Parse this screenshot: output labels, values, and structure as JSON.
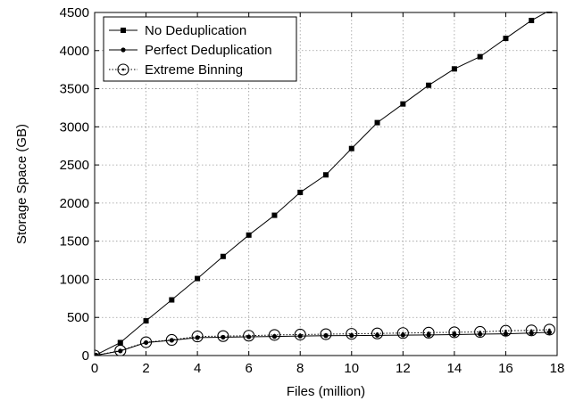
{
  "chart_data": {
    "type": "line",
    "title": "",
    "xlabel": "Files (million)",
    "ylabel": "Storage Space (GB)",
    "xlim": [
      0,
      18
    ],
    "ylim": [
      0,
      4500
    ],
    "xticks": [
      0,
      2,
      4,
      6,
      8,
      10,
      12,
      14,
      16,
      18
    ],
    "xtick_labels": [
      "0",
      "2",
      "4",
      "6",
      "8",
      "10",
      "12",
      "14",
      "16",
      "18"
    ],
    "yticks": [
      0,
      500,
      1000,
      1500,
      2000,
      2500,
      3000,
      3500,
      4000,
      4500
    ],
    "ytick_labels": [
      "0",
      "500",
      "1000",
      "1500",
      "2000",
      "2500",
      "3000",
      "3500",
      "4000",
      "4500"
    ],
    "grid": true,
    "legend_position": "top-left",
    "series": [
      {
        "name": "No Deduplication",
        "marker": "square",
        "line_style": "solid",
        "color": "#000000",
        "x": [
          0,
          1,
          2,
          3,
          4,
          5,
          6,
          7,
          8,
          9,
          10,
          11,
          12,
          13,
          14,
          15,
          16,
          17,
          17.7
        ],
        "y": [
          0,
          170,
          455,
          730,
          1010,
          1300,
          1580,
          1840,
          2140,
          2370,
          2715,
          3055,
          3300,
          3545,
          3760,
          3920,
          4160,
          4395,
          4525
        ]
      },
      {
        "name": "Perfect Deduplication",
        "marker": "dot",
        "line_style": "solid",
        "color": "#000000",
        "x": [
          0,
          1,
          2,
          3,
          4,
          5,
          6,
          7,
          8,
          9,
          10,
          11,
          12,
          13,
          14,
          15,
          16,
          17,
          17.7
        ],
        "y": [
          0,
          60,
          170,
          200,
          235,
          240,
          245,
          250,
          255,
          260,
          262,
          265,
          268,
          270,
          275,
          280,
          285,
          295,
          305
        ]
      },
      {
        "name": "Extreme Binning",
        "marker": "circle-dot",
        "line_style": "dotted",
        "color": "#000000",
        "x": [
          0,
          1,
          2,
          3,
          4,
          5,
          6,
          7,
          8,
          9,
          10,
          11,
          12,
          13,
          14,
          15,
          16,
          17,
          17.7
        ],
        "y": [
          0,
          65,
          175,
          205,
          250,
          255,
          260,
          270,
          275,
          280,
          285,
          290,
          295,
          300,
          305,
          310,
          325,
          330,
          340
        ]
      }
    ]
  }
}
